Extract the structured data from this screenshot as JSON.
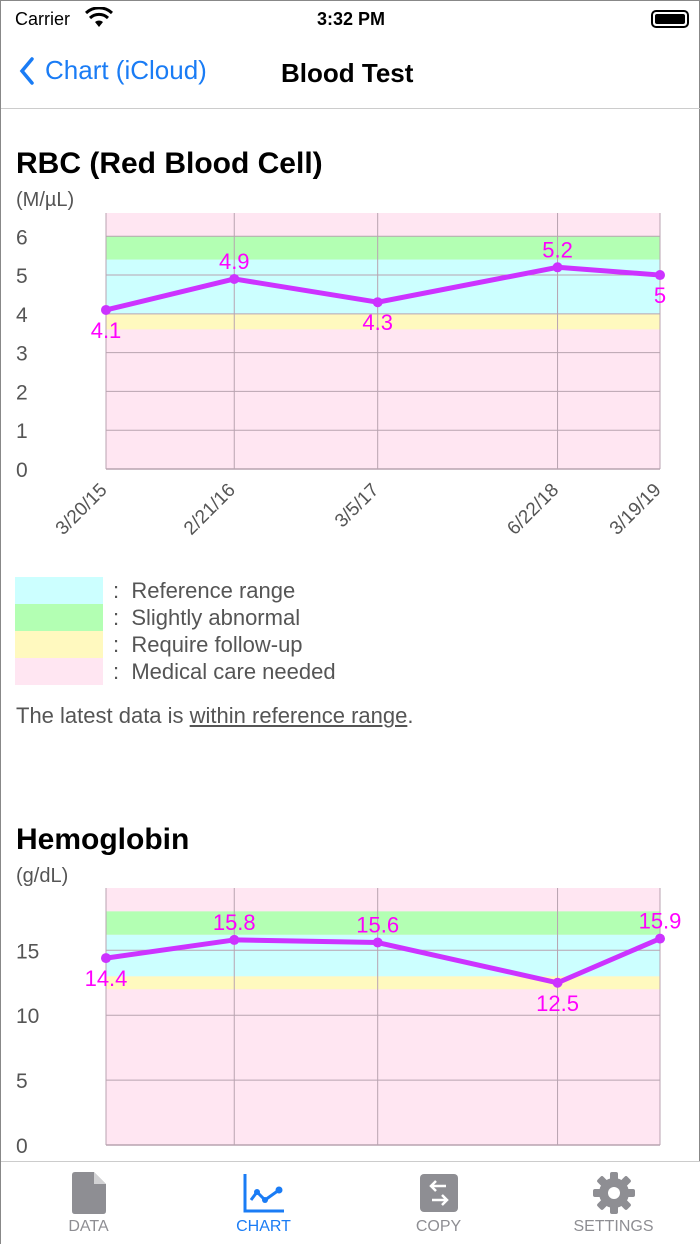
{
  "status_bar": {
    "carrier": "Carrier",
    "time": "3:32 PM"
  },
  "nav": {
    "back_label": "Chart (iCloud)",
    "title": "Blood Test"
  },
  "colors": {
    "reference": "#ccffff",
    "slight": "#b3ffb3",
    "followup": "#fff9bf",
    "medical": "#ffe6f2",
    "line": "#cc33ff",
    "label": "#ff00ff",
    "accent": "#1a7cf5"
  },
  "legend": [
    {
      "key": "reference",
      "label": "Reference range"
    },
    {
      "key": "slight",
      "label": "Slightly abnormal"
    },
    {
      "key": "followup",
      "label": "Require follow-up"
    },
    {
      "key": "medical",
      "label": "Medical care needed"
    }
  ],
  "latest": {
    "prefix": "The latest data is ",
    "status": "within reference range",
    "suffix": "."
  },
  "chart_data": [
    {
      "type": "line",
      "title": "RBC (Red Blood Cell)",
      "ylabel": "(M/µL)",
      "x": [
        "3/20/15",
        "2/21/16",
        "3/5/17",
        "6/22/18",
        "3/19/19"
      ],
      "values": [
        4.1,
        4.9,
        4.3,
        5.2,
        5
      ],
      "ylim": [
        0,
        6.6
      ],
      "yticks": [
        0,
        1,
        2,
        3,
        4,
        5,
        6
      ],
      "grid": true,
      "bands": {
        "slight": [
          5.4,
          6.0
        ],
        "reference": [
          4.0,
          5.4
        ],
        "followup": [
          3.6,
          4.0
        ]
      }
    },
    {
      "type": "line",
      "title": "Hemoglobin",
      "ylabel": "(g/dL)",
      "x": [
        "3/20/15",
        "2/21/16",
        "3/5/17",
        "6/22/18",
        "3/19/19"
      ],
      "values": [
        14.4,
        15.8,
        15.6,
        12.5,
        15.9
      ],
      "ylim": [
        0,
        19.8
      ],
      "yticks": [
        0,
        5,
        10,
        15
      ],
      "grid": true,
      "bands": {
        "slight": [
          16.2,
          18.0
        ],
        "reference": [
          13.0,
          16.2
        ],
        "followup": [
          12.0,
          13.0
        ]
      }
    }
  ],
  "tabs": [
    {
      "label": "DATA",
      "icon": "document-icon"
    },
    {
      "label": "CHART",
      "icon": "chart-icon",
      "active": true
    },
    {
      "label": "COPY",
      "icon": "copy-icon"
    },
    {
      "label": "SETTINGS",
      "icon": "gear-icon"
    }
  ]
}
